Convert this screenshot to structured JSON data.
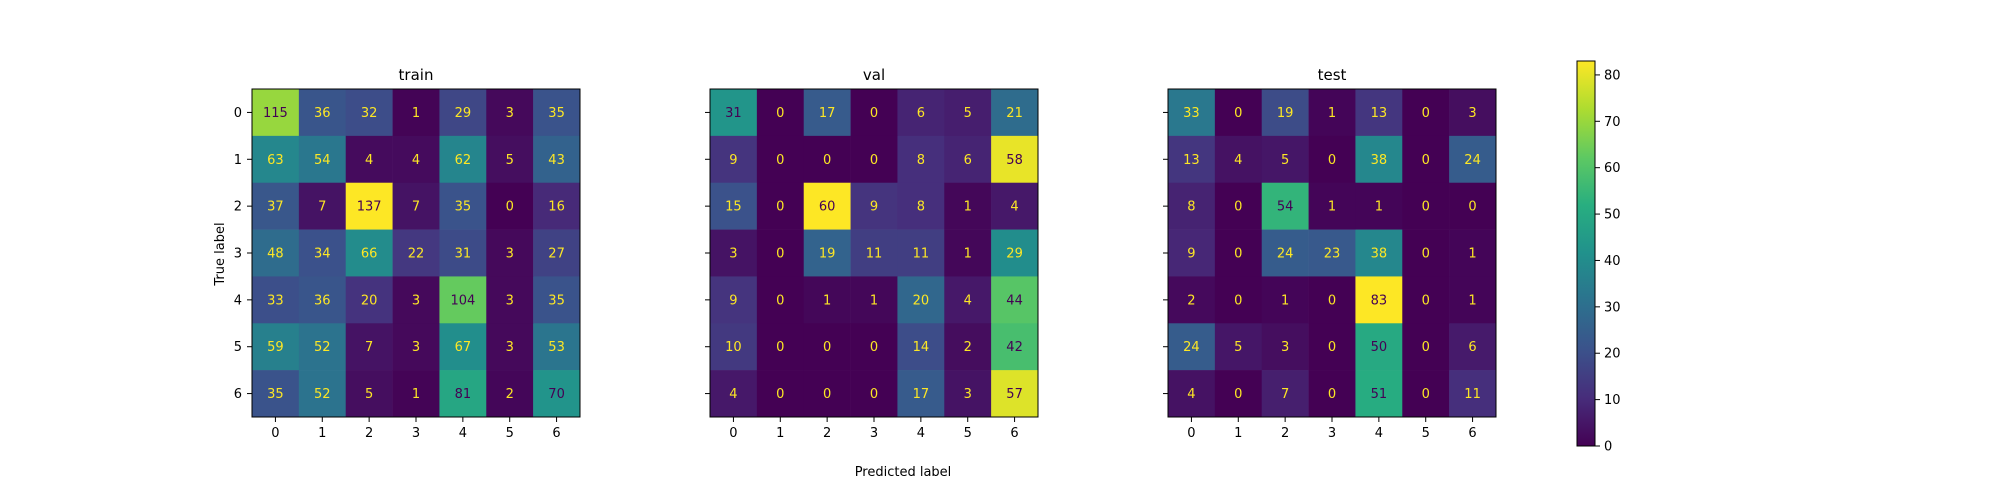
{
  "chart_data": {
    "type": "heatmap",
    "class_labels": [
      "0",
      "1",
      "2",
      "3",
      "4",
      "5",
      "6"
    ],
    "xlabel": "Predicted label",
    "ylabel": "True label",
    "colormap": "viridis",
    "color_range": [
      0,
      83
    ],
    "colorbar_ticks": [
      "0",
      "10",
      "20",
      "30",
      "40",
      "50",
      "60",
      "70",
      "80"
    ],
    "panels": [
      {
        "title": "train",
        "matrix": [
          [
            115,
            36,
            32,
            1,
            29,
            3,
            35
          ],
          [
            63,
            54,
            4,
            4,
            62,
            5,
            43
          ],
          [
            37,
            7,
            137,
            7,
            35,
            0,
            16
          ],
          [
            48,
            34,
            66,
            22,
            31,
            3,
            27
          ],
          [
            33,
            36,
            20,
            3,
            104,
            3,
            35
          ],
          [
            59,
            52,
            7,
            3,
            67,
            3,
            53
          ],
          [
            35,
            52,
            5,
            1,
            81,
            2,
            70
          ]
        ]
      },
      {
        "title": "val",
        "matrix": [
          [
            31,
            0,
            17,
            0,
            6,
            5,
            21
          ],
          [
            9,
            0,
            0,
            0,
            8,
            6,
            58
          ],
          [
            15,
            0,
            60,
            9,
            8,
            1,
            4
          ],
          [
            3,
            0,
            19,
            11,
            11,
            1,
            29
          ],
          [
            9,
            0,
            1,
            1,
            20,
            4,
            44
          ],
          [
            10,
            0,
            0,
            0,
            14,
            2,
            42
          ],
          [
            4,
            0,
            0,
            0,
            17,
            3,
            57
          ]
        ]
      },
      {
        "title": "test",
        "matrix": [
          [
            33,
            0,
            19,
            1,
            13,
            0,
            3
          ],
          [
            13,
            4,
            5,
            0,
            38,
            0,
            24
          ],
          [
            8,
            0,
            54,
            1,
            1,
            0,
            0
          ],
          [
            9,
            0,
            24,
            23,
            38,
            0,
            1
          ],
          [
            2,
            0,
            1,
            0,
            83,
            0,
            1
          ],
          [
            24,
            5,
            3,
            0,
            50,
            0,
            6
          ],
          [
            4,
            0,
            7,
            0,
            51,
            0,
            11
          ]
        ]
      }
    ]
  }
}
